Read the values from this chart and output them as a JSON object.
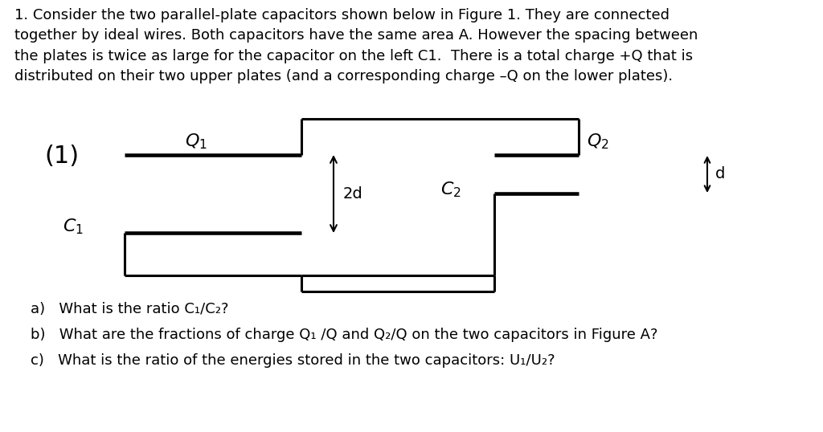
{
  "bg_color": "#ffffff",
  "fig_width": 10.24,
  "fig_height": 5.38,
  "paragraph_text": "1. Consider the two parallel-plate capacitors shown below in Figure 1. They are connected\ntogether by ideal wires. Both capacitors have the same area A. However the spacing between\nthe plates is twice as large for the capacitor on the left C1.  There is a total charge +Q that is\ndistributed on their two upper plates (and a corresponding charge –Q on the lower plates).",
  "label_1": "(1)",
  "question_a": "a)   What is the ratio C₁/C₂?",
  "question_b": "b)   What are the fractions of charge Q₁ /Q and Q₂/Q on the two capacitors in Figure A?",
  "question_c": "c)   What is the ratio of the energies stored in the two capacitors: U₁/U₂?",
  "text_color": "#000000",
  "line_color": "#000000",
  "font_size_para": 13.0,
  "font_size_questions": 13.0,
  "font_size_1": 22,
  "font_size_labels": 16,
  "lw": 2.2
}
